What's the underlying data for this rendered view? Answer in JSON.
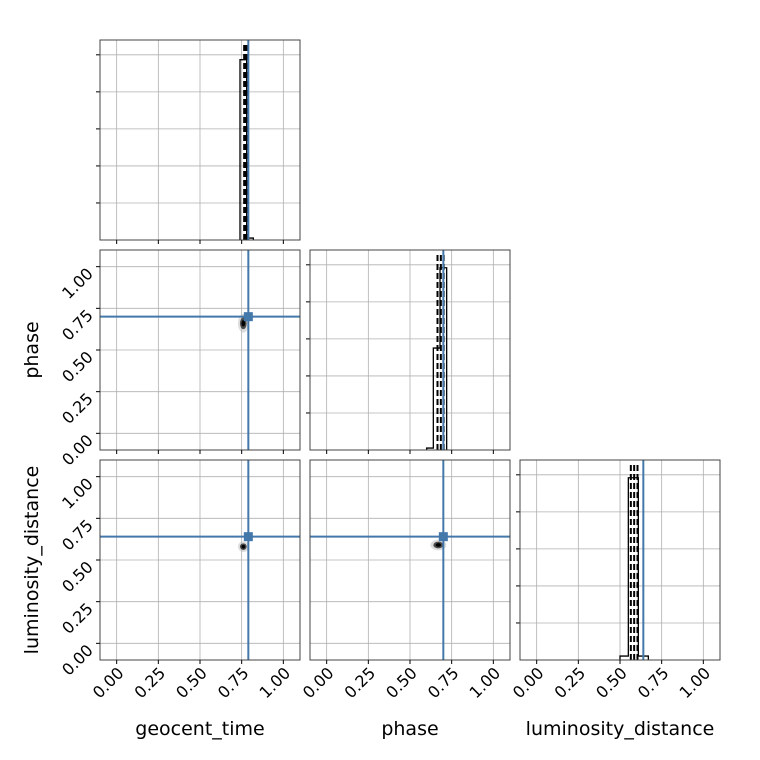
{
  "chart_data": {
    "type": "corner",
    "parameters": [
      "geocent_time",
      "phase",
      "luminosity_distance"
    ],
    "axis_labels": {
      "x": [
        "geocent_time",
        "phase",
        "luminosity_distance"
      ],
      "y": [
        "",
        "phase",
        "luminosity_distance"
      ]
    },
    "range": [
      -0.1,
      1.1
    ],
    "ticks": [
      0.0,
      0.25,
      0.5,
      0.75,
      1.0
    ],
    "tick_labels": [
      "0.00",
      "0.25",
      "0.50",
      "0.75",
      "1.00"
    ],
    "grid": true,
    "truths": {
      "geocent_time": 0.79,
      "phase": 0.7,
      "luminosity_distance": 0.64
    },
    "truth_color": "#4477aa",
    "marginals": [
      {
        "parameter": "geocent_time",
        "bins": [
          {
            "x0": 0.74,
            "x1": 0.78,
            "height": 0.92
          },
          {
            "x0": 0.78,
            "x1": 0.82,
            "height": 0.01
          }
        ],
        "quantiles": [
          0.765,
          0.773,
          0.781
        ]
      },
      {
        "parameter": "phase",
        "bins": [
          {
            "x0": 0.6,
            "x1": 0.64,
            "height": 0.01
          },
          {
            "x0": 0.64,
            "x1": 0.68,
            "height": 0.52
          },
          {
            "x0": 0.68,
            "x1": 0.72,
            "height": 0.93
          }
        ],
        "quantiles": [
          0.665,
          0.685,
          0.702
        ]
      },
      {
        "parameter": "luminosity_distance",
        "bins": [
          {
            "x0": 0.5,
            "x1": 0.55,
            "height": 0.02
          },
          {
            "x0": 0.55,
            "x1": 0.61,
            "height": 0.93
          },
          {
            "x0": 0.61,
            "x1": 0.67,
            "height": 0.02
          }
        ],
        "quantiles": [
          0.565,
          0.585,
          0.605
        ]
      }
    ],
    "joint": [
      {
        "x_param": "geocent_time",
        "y_param": "phase",
        "center": [
          0.76,
          0.66
        ],
        "spread": [
          0.02,
          0.035
        ]
      },
      {
        "x_param": "geocent_time",
        "y_param": "luminosity_distance",
        "center": [
          0.76,
          0.58
        ],
        "spread": [
          0.02,
          0.02
        ]
      },
      {
        "x_param": "phase",
        "y_param": "luminosity_distance",
        "center": [
          0.67,
          0.59
        ],
        "spread": [
          0.03,
          0.02
        ]
      }
    ]
  }
}
